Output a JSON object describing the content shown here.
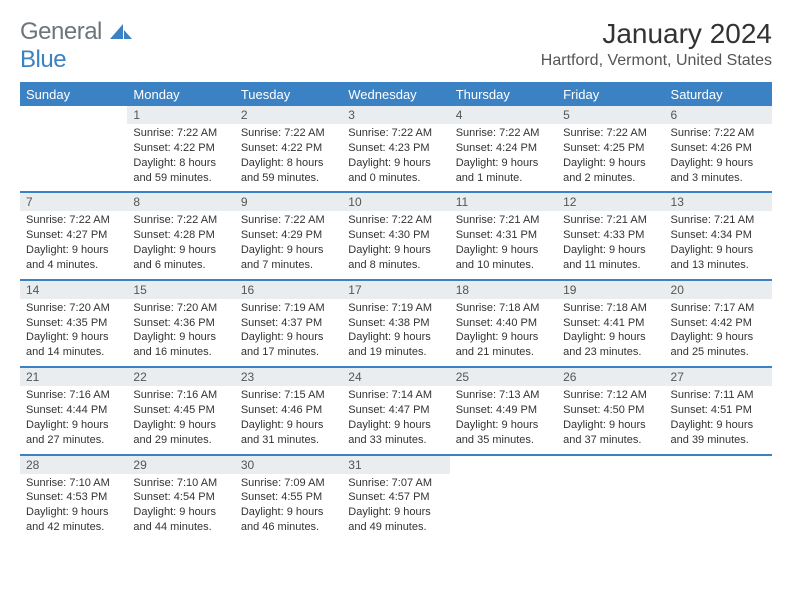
{
  "logo": {
    "word1": "General",
    "word2": "Blue"
  },
  "colors": {
    "accent": "#3b82c4",
    "header_gray": "#6c757d",
    "daynum_bg": "#e9edf0",
    "text": "#333333",
    "bg": "#ffffff"
  },
  "title": "January 2024",
  "location": "Hartford, Vermont, United States",
  "day_headers": [
    "Sunday",
    "Monday",
    "Tuesday",
    "Wednesday",
    "Thursday",
    "Friday",
    "Saturday"
  ],
  "weeks": [
    [
      null,
      {
        "n": "1",
        "sr": "Sunrise: 7:22 AM",
        "ss": "Sunset: 4:22 PM",
        "d1": "Daylight: 8 hours",
        "d2": "and 59 minutes."
      },
      {
        "n": "2",
        "sr": "Sunrise: 7:22 AM",
        "ss": "Sunset: 4:22 PM",
        "d1": "Daylight: 8 hours",
        "d2": "and 59 minutes."
      },
      {
        "n": "3",
        "sr": "Sunrise: 7:22 AM",
        "ss": "Sunset: 4:23 PM",
        "d1": "Daylight: 9 hours",
        "d2": "and 0 minutes."
      },
      {
        "n": "4",
        "sr": "Sunrise: 7:22 AM",
        "ss": "Sunset: 4:24 PM",
        "d1": "Daylight: 9 hours",
        "d2": "and 1 minute."
      },
      {
        "n": "5",
        "sr": "Sunrise: 7:22 AM",
        "ss": "Sunset: 4:25 PM",
        "d1": "Daylight: 9 hours",
        "d2": "and 2 minutes."
      },
      {
        "n": "6",
        "sr": "Sunrise: 7:22 AM",
        "ss": "Sunset: 4:26 PM",
        "d1": "Daylight: 9 hours",
        "d2": "and 3 minutes."
      }
    ],
    [
      {
        "n": "7",
        "sr": "Sunrise: 7:22 AM",
        "ss": "Sunset: 4:27 PM",
        "d1": "Daylight: 9 hours",
        "d2": "and 4 minutes."
      },
      {
        "n": "8",
        "sr": "Sunrise: 7:22 AM",
        "ss": "Sunset: 4:28 PM",
        "d1": "Daylight: 9 hours",
        "d2": "and 6 minutes."
      },
      {
        "n": "9",
        "sr": "Sunrise: 7:22 AM",
        "ss": "Sunset: 4:29 PM",
        "d1": "Daylight: 9 hours",
        "d2": "and 7 minutes."
      },
      {
        "n": "10",
        "sr": "Sunrise: 7:22 AM",
        "ss": "Sunset: 4:30 PM",
        "d1": "Daylight: 9 hours",
        "d2": "and 8 minutes."
      },
      {
        "n": "11",
        "sr": "Sunrise: 7:21 AM",
        "ss": "Sunset: 4:31 PM",
        "d1": "Daylight: 9 hours",
        "d2": "and 10 minutes."
      },
      {
        "n": "12",
        "sr": "Sunrise: 7:21 AM",
        "ss": "Sunset: 4:33 PM",
        "d1": "Daylight: 9 hours",
        "d2": "and 11 minutes."
      },
      {
        "n": "13",
        "sr": "Sunrise: 7:21 AM",
        "ss": "Sunset: 4:34 PM",
        "d1": "Daylight: 9 hours",
        "d2": "and 13 minutes."
      }
    ],
    [
      {
        "n": "14",
        "sr": "Sunrise: 7:20 AM",
        "ss": "Sunset: 4:35 PM",
        "d1": "Daylight: 9 hours",
        "d2": "and 14 minutes."
      },
      {
        "n": "15",
        "sr": "Sunrise: 7:20 AM",
        "ss": "Sunset: 4:36 PM",
        "d1": "Daylight: 9 hours",
        "d2": "and 16 minutes."
      },
      {
        "n": "16",
        "sr": "Sunrise: 7:19 AM",
        "ss": "Sunset: 4:37 PM",
        "d1": "Daylight: 9 hours",
        "d2": "and 17 minutes."
      },
      {
        "n": "17",
        "sr": "Sunrise: 7:19 AM",
        "ss": "Sunset: 4:38 PM",
        "d1": "Daylight: 9 hours",
        "d2": "and 19 minutes."
      },
      {
        "n": "18",
        "sr": "Sunrise: 7:18 AM",
        "ss": "Sunset: 4:40 PM",
        "d1": "Daylight: 9 hours",
        "d2": "and 21 minutes."
      },
      {
        "n": "19",
        "sr": "Sunrise: 7:18 AM",
        "ss": "Sunset: 4:41 PM",
        "d1": "Daylight: 9 hours",
        "d2": "and 23 minutes."
      },
      {
        "n": "20",
        "sr": "Sunrise: 7:17 AM",
        "ss": "Sunset: 4:42 PM",
        "d1": "Daylight: 9 hours",
        "d2": "and 25 minutes."
      }
    ],
    [
      {
        "n": "21",
        "sr": "Sunrise: 7:16 AM",
        "ss": "Sunset: 4:44 PM",
        "d1": "Daylight: 9 hours",
        "d2": "and 27 minutes."
      },
      {
        "n": "22",
        "sr": "Sunrise: 7:16 AM",
        "ss": "Sunset: 4:45 PM",
        "d1": "Daylight: 9 hours",
        "d2": "and 29 minutes."
      },
      {
        "n": "23",
        "sr": "Sunrise: 7:15 AM",
        "ss": "Sunset: 4:46 PM",
        "d1": "Daylight: 9 hours",
        "d2": "and 31 minutes."
      },
      {
        "n": "24",
        "sr": "Sunrise: 7:14 AM",
        "ss": "Sunset: 4:47 PM",
        "d1": "Daylight: 9 hours",
        "d2": "and 33 minutes."
      },
      {
        "n": "25",
        "sr": "Sunrise: 7:13 AM",
        "ss": "Sunset: 4:49 PM",
        "d1": "Daylight: 9 hours",
        "d2": "and 35 minutes."
      },
      {
        "n": "26",
        "sr": "Sunrise: 7:12 AM",
        "ss": "Sunset: 4:50 PM",
        "d1": "Daylight: 9 hours",
        "d2": "and 37 minutes."
      },
      {
        "n": "27",
        "sr": "Sunrise: 7:11 AM",
        "ss": "Sunset: 4:51 PM",
        "d1": "Daylight: 9 hours",
        "d2": "and 39 minutes."
      }
    ],
    [
      {
        "n": "28",
        "sr": "Sunrise: 7:10 AM",
        "ss": "Sunset: 4:53 PM",
        "d1": "Daylight: 9 hours",
        "d2": "and 42 minutes."
      },
      {
        "n": "29",
        "sr": "Sunrise: 7:10 AM",
        "ss": "Sunset: 4:54 PM",
        "d1": "Daylight: 9 hours",
        "d2": "and 44 minutes."
      },
      {
        "n": "30",
        "sr": "Sunrise: 7:09 AM",
        "ss": "Sunset: 4:55 PM",
        "d1": "Daylight: 9 hours",
        "d2": "and 46 minutes."
      },
      {
        "n": "31",
        "sr": "Sunrise: 7:07 AM",
        "ss": "Sunset: 4:57 PM",
        "d1": "Daylight: 9 hours",
        "d2": "and 49 minutes."
      },
      null,
      null,
      null
    ]
  ]
}
